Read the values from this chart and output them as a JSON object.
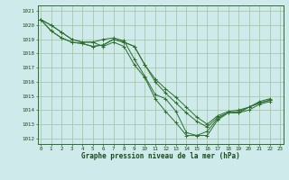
{
  "title": "Graphe pression niveau de la mer (hPa)",
  "bg_color": "#ceeaea",
  "grid_color": "#a8c8a8",
  "line_color": "#2d6e2d",
  "xlim": [
    -0.3,
    23.3
  ],
  "ylim": [
    1011.6,
    1021.4
  ],
  "yticks": [
    1012,
    1013,
    1014,
    1015,
    1016,
    1017,
    1018,
    1019,
    1020,
    1021
  ],
  "x_ticks": [
    0,
    1,
    2,
    3,
    4,
    5,
    6,
    7,
    8,
    9,
    10,
    11,
    12,
    13,
    14,
    15,
    16,
    17,
    18,
    19,
    20,
    21,
    22,
    23
  ],
  "lines": [
    {
      "x": [
        0,
        1,
        2,
        3,
        4,
        5,
        6,
        7,
        8,
        9,
        10,
        11,
        12,
        13,
        14,
        15,
        16,
        17,
        18,
        19,
        20,
        21,
        22
      ],
      "y": [
        1020.4,
        1020.0,
        1019.5,
        1019.0,
        1018.8,
        1018.8,
        1018.5,
        1018.8,
        1018.5,
        1017.2,
        1016.3,
        1014.8,
        1013.9,
        1013.1,
        1012.2,
        1012.2,
        1012.2,
        1013.3,
        1013.8,
        1013.8,
        1014.0,
        1014.4,
        1014.6
      ]
    },
    {
      "x": [
        0,
        1,
        2,
        3,
        4,
        5,
        6,
        7,
        8,
        9,
        10,
        11,
        12,
        13,
        14,
        15,
        16,
        17,
        18,
        19,
        20,
        21,
        22
      ],
      "y": [
        1020.4,
        1020.0,
        1019.5,
        1019.0,
        1018.8,
        1018.8,
        1019.0,
        1019.1,
        1018.9,
        1017.6,
        1016.4,
        1015.1,
        1014.8,
        1013.9,
        1012.4,
        1012.2,
        1012.5,
        1013.4,
        1013.8,
        1013.8,
        1014.2,
        1014.5,
        1014.7
      ]
    },
    {
      "x": [
        0,
        1,
        2,
        3,
        4,
        5,
        6,
        7,
        8,
        9,
        10,
        11,
        12,
        13,
        14,
        15,
        16,
        17,
        18,
        19,
        20,
        21,
        22
      ],
      "y": [
        1020.4,
        1019.6,
        1019.1,
        1018.8,
        1018.7,
        1018.5,
        1018.6,
        1019.0,
        1018.8,
        1018.5,
        1017.2,
        1016.0,
        1015.2,
        1014.5,
        1013.8,
        1013.2,
        1012.8,
        1013.5,
        1013.8,
        1013.9,
        1014.2,
        1014.5,
        1014.7
      ]
    },
    {
      "x": [
        0,
        1,
        2,
        3,
        4,
        5,
        6,
        7,
        8,
        9,
        10,
        11,
        12,
        13,
        14,
        15,
        16,
        17,
        18,
        19,
        20,
        21,
        22
      ],
      "y": [
        1020.4,
        1019.6,
        1019.1,
        1018.8,
        1018.7,
        1018.5,
        1018.6,
        1019.0,
        1018.8,
        1018.5,
        1017.2,
        1016.2,
        1015.5,
        1014.9,
        1014.2,
        1013.5,
        1013.0,
        1013.6,
        1013.9,
        1014.0,
        1014.2,
        1014.6,
        1014.8
      ]
    }
  ]
}
